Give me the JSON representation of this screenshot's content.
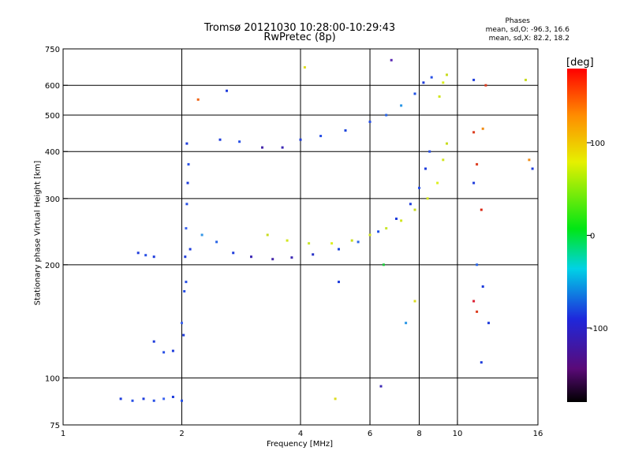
{
  "title_line1": "Tromsø 20121030 10:28:00-10:29:43",
  "title_line2": "RwPretec (8p)",
  "phase_info": {
    "heading": "Phases",
    "line_o": "mean, sd,O: -96.3, 16.6",
    "line_x": "mean, sd,X:  82.2, 18.2"
  },
  "colorbar": {
    "title": "[deg]",
    "ticks": [
      {
        "value": 100,
        "label": "100"
      },
      {
        "value": 0,
        "label": "0"
      },
      {
        "value": -100,
        "label": "-100"
      }
    ],
    "range": [
      -180,
      180
    ]
  },
  "chart_data": {
    "type": "scatter",
    "xlabel": "Frequency [MHz]",
    "ylabel": "Stationary phase Virtual Height [km]",
    "x_scale": "log",
    "y_scale": "log",
    "xlim": [
      1,
      16
    ],
    "ylim": [
      75,
      750
    ],
    "x_ticks": [
      {
        "value": 1,
        "label": "1"
      },
      {
        "value": 2,
        "label": "2"
      },
      {
        "value": 4,
        "label": "4"
      },
      {
        "value": 6,
        "label": "6"
      },
      {
        "value": 8,
        "label": "8"
      },
      {
        "value": 10,
        "label": "10"
      },
      {
        "value": 16,
        "label": "16"
      }
    ],
    "y_ticks": [
      {
        "value": 75,
        "label": "75"
      },
      {
        "value": 100,
        "label": "100"
      },
      {
        "value": 200,
        "label": "200"
      },
      {
        "value": 300,
        "label": "300"
      },
      {
        "value": 400,
        "label": "400"
      },
      {
        "value": 500,
        "label": "500"
      },
      {
        "value": 600,
        "label": "600"
      },
      {
        "value": 750,
        "label": "750"
      }
    ],
    "grid_x": [
      2,
      4,
      6,
      8,
      10
    ],
    "grid_y": [
      100,
      200,
      300,
      400,
      500,
      600
    ],
    "series": [
      {
        "id": "o-bottom",
        "points": [
          [
            1.7,
            125
          ],
          [
            1.8,
            117
          ],
          [
            1.9,
            118
          ],
          [
            2.0,
            140
          ],
          [
            2.05,
            180
          ],
          [
            2.1,
            220
          ],
          [
            2.25,
            240
          ],
          [
            2.45,
            230
          ],
          [
            2.7,
            215
          ],
          [
            3.0,
            210
          ],
          [
            3.4,
            207
          ],
          [
            3.8,
            209
          ],
          [
            4.3,
            213
          ],
          [
            5.0,
            220
          ],
          [
            5.6,
            230
          ],
          [
            6.3,
            245
          ],
          [
            7.0,
            265
          ],
          [
            7.6,
            290
          ],
          [
            8.0,
            320
          ],
          [
            8.3,
            360
          ],
          [
            8.5,
            400
          ]
        ],
        "colors": [
          "#1e3cdc",
          "#2850e6",
          "#1e3cdc",
          "#3c64f0",
          "#2850e6",
          "#1e3cdc",
          "#3296e6",
          "#2864e6",
          "#1e3cdc",
          "#3c28b4",
          "#4628aa",
          "#3c28b4",
          "#2832c8",
          "#1e46dc",
          "#2864e6",
          "#1e50e6",
          "#1e3cdc",
          "#1e3cdc",
          "#2850e6",
          "#1e3cdc",
          "#2850e6"
        ]
      },
      {
        "id": "o-cusp-2mhz",
        "points": [
          [
            2.02,
            130
          ],
          [
            2.03,
            170
          ],
          [
            2.04,
            210
          ],
          [
            2.05,
            250
          ],
          [
            2.06,
            290
          ],
          [
            2.07,
            330
          ],
          [
            2.08,
            370
          ],
          [
            2.06,
            420
          ]
        ],
        "colors": [
          "#1e3cdc",
          "#2850e6",
          "#1e3cdc",
          "#3c64f0",
          "#2850e6",
          "#1e3cdc",
          "#2850e6",
          "#1e3cdc"
        ]
      },
      {
        "id": "o-f2-upper",
        "points": [
          [
            2.5,
            430
          ],
          [
            2.8,
            425
          ],
          [
            3.2,
            410
          ],
          [
            3.6,
            410
          ],
          [
            4.0,
            430
          ],
          [
            4.5,
            440
          ],
          [
            5.2,
            455
          ],
          [
            6.0,
            480
          ],
          [
            6.6,
            500
          ],
          [
            7.2,
            530
          ],
          [
            7.8,
            570
          ],
          [
            8.2,
            610
          ],
          [
            8.6,
            630
          ]
        ],
        "colors": [
          "#1e3cdc",
          "#2850e6",
          "#4628aa",
          "#3c28b4",
          "#1e3cdc",
          "#2850e6",
          "#1e46dc",
          "#2850e6",
          "#2864e6",
          "#2896e6",
          "#1e50e6",
          "#1e3cdc",
          "#2850e6"
        ]
      },
      {
        "id": "x-trace",
        "points": [
          [
            3.3,
            240
          ],
          [
            3.7,
            232
          ],
          [
            4.2,
            228
          ],
          [
            4.8,
            228
          ],
          [
            5.4,
            232
          ],
          [
            6.0,
            240
          ],
          [
            6.6,
            250
          ],
          [
            7.2,
            262
          ],
          [
            7.8,
            280
          ],
          [
            8.4,
            300
          ],
          [
            8.9,
            330
          ],
          [
            9.2,
            380
          ],
          [
            9.4,
            420
          ],
          [
            9.0,
            560
          ],
          [
            9.2,
            610
          ],
          [
            9.4,
            640
          ]
        ],
        "colors": [
          "#c8dc1e",
          "#d2e61e",
          "#c8e628",
          "#dcf01e",
          "#c8dc1e",
          "#d2e61e",
          "#c8e628",
          "#d2e61e",
          "#c8dc1e",
          "#d2e61e",
          "#dcf01e",
          "#d2e61e",
          "#c8dc1e",
          "#d2e61e",
          "#dcf01e",
          "#c8dc1e"
        ]
      },
      {
        "id": "low-echoes",
        "points": [
          [
            1.4,
            88
          ],
          [
            1.5,
            87
          ],
          [
            1.6,
            88
          ],
          [
            1.7,
            87
          ],
          [
            1.8,
            88
          ],
          [
            1.9,
            89
          ],
          [
            2.0,
            87
          ]
        ],
        "colors": [
          "#1e3cdc",
          "#2850e6",
          "#1e3cdc",
          "#2850e6",
          "#3c64f0",
          "#1e3cdc",
          "#2850e6"
        ]
      },
      {
        "id": "e-layer",
        "points": [
          [
            1.55,
            215
          ],
          [
            1.62,
            212
          ],
          [
            1.7,
            210
          ]
        ],
        "colors": [
          "#1e3cdc",
          "#2850e6",
          "#1e3cdc"
        ]
      },
      {
        "id": "scatter-noise",
        "points": [
          [
            11.0,
            620
          ],
          [
            11.8,
            600
          ],
          [
            11.0,
            450
          ],
          [
            11.6,
            460
          ],
          [
            11.2,
            370
          ],
          [
            11.0,
            330
          ],
          [
            11.5,
            280
          ],
          [
            11.2,
            200
          ],
          [
            11.6,
            175
          ],
          [
            11.0,
            160
          ],
          [
            11.2,
            150
          ],
          [
            12.0,
            140
          ],
          [
            11.5,
            110
          ],
          [
            15.5,
            360
          ],
          [
            15.2,
            380
          ],
          [
            14.9,
            620
          ],
          [
            2.2,
            550
          ],
          [
            2.6,
            580
          ],
          [
            4.1,
            670
          ],
          [
            6.8,
            700
          ],
          [
            6.4,
            95
          ],
          [
            4.9,
            88
          ],
          [
            5.0,
            180
          ],
          [
            7.4,
            140
          ],
          [
            7.8,
            160
          ],
          [
            6.5,
            200
          ]
        ],
        "colors": [
          "#1e3cdc",
          "#dc3c1e",
          "#dc3c1e",
          "#f08c14",
          "#dc3c1e",
          "#1e3cdc",
          "#dc2814",
          "#2864e6",
          "#1e3cdc",
          "#dc1e32",
          "#dc3c1e",
          "#1e3cdc",
          "#1e3cdc",
          "#1e3cdc",
          "#f08c14",
          "#c8dc1e",
          "#f06414",
          "#1e3cdc",
          "#dcdc1e",
          "#5a28b4",
          "#3c28b4",
          "#dcdc1e",
          "#1e3cdc",
          "#2896e6",
          "#dcdc1e",
          "#1ec83c"
        ]
      }
    ]
  }
}
